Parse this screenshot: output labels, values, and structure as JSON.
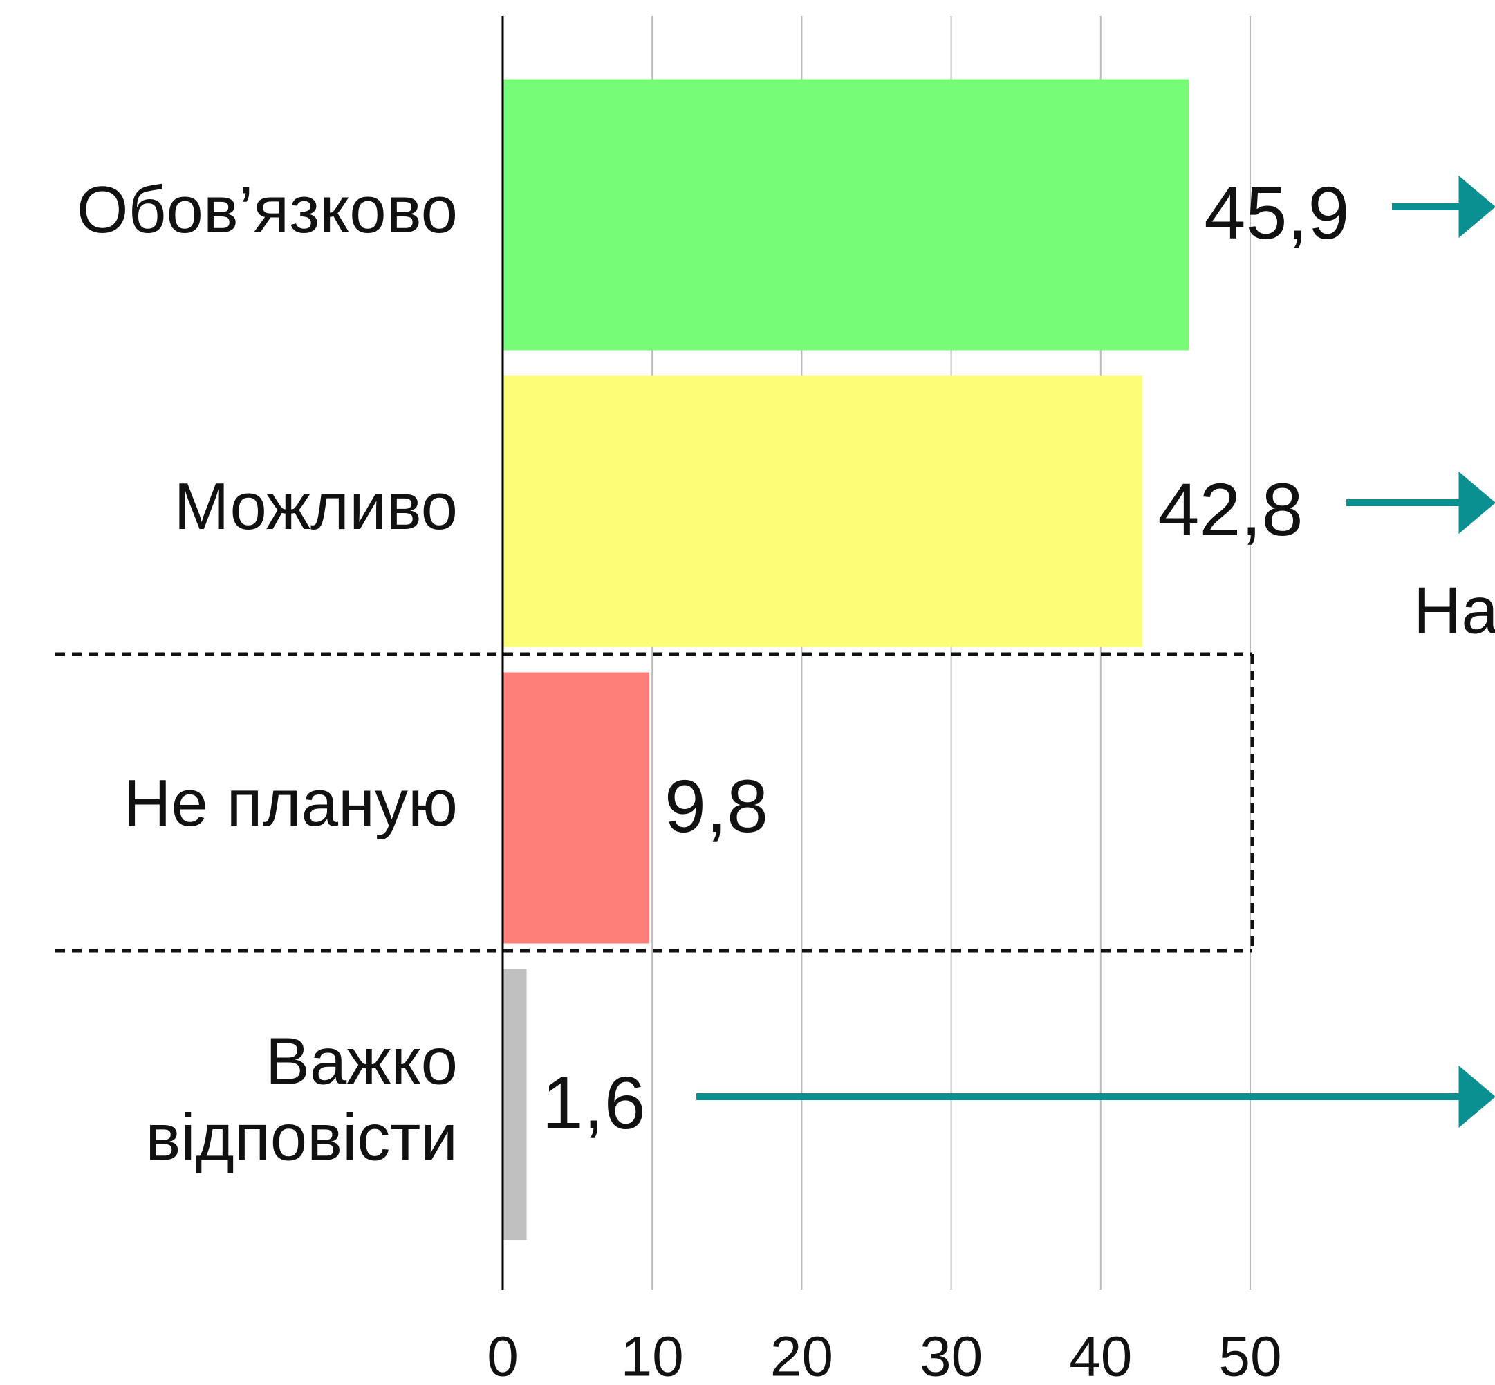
{
  "chart_data": {
    "type": "bar",
    "orientation": "horizontal",
    "categories": [
      "Обов’язково",
      "Можливо",
      "Не планую",
      "Важко відповісти"
    ],
    "values": [
      45.9,
      42.8,
      9.8,
      1.6
    ],
    "value_labels": [
      "45,9",
      "42,8",
      "9,8",
      "1,6"
    ],
    "colors": [
      "#77fc77",
      "#fdfd77",
      "#fe7f7a",
      "#c0c0c0"
    ],
    "xlim": [
      0,
      50
    ],
    "xticks": [
      0,
      10,
      20,
      30,
      40,
      50
    ],
    "grid": true,
    "annotation": "На"
  }
}
